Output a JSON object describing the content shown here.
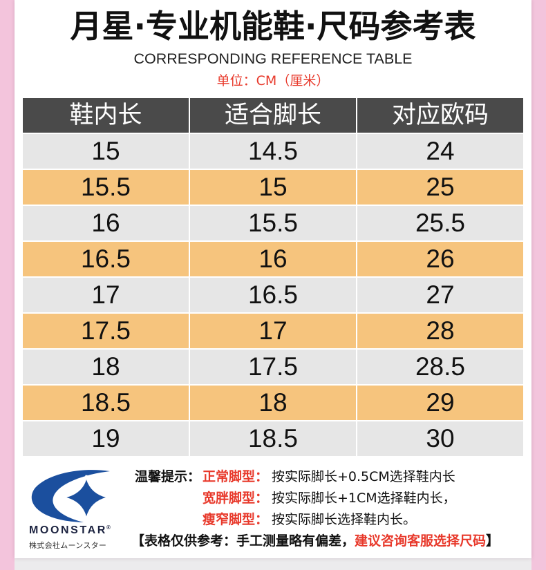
{
  "title": "月星·专业机能鞋·尺码参考表",
  "subtitle": "CORRESPONDING REFERENCE TABLE",
  "unit": "单位：CM（厘米）",
  "table": {
    "headers": [
      "鞋内长",
      "适合脚长",
      "对应欧码"
    ],
    "rows": [
      [
        "15",
        "14.5",
        "24"
      ],
      [
        "15.5",
        "15",
        "25"
      ],
      [
        "16",
        "15.5",
        "25.5"
      ],
      [
        "16.5",
        "16",
        "26"
      ],
      [
        "17",
        "16.5",
        "27"
      ],
      [
        "17.5",
        "17",
        "28"
      ],
      [
        "18",
        "17.5",
        "28.5"
      ],
      [
        "18.5",
        "18",
        "29"
      ],
      [
        "19",
        "18.5",
        "30"
      ]
    ]
  },
  "brand": {
    "logo_icon": "moonstar-logo-icon",
    "name": "MOONSTAR",
    "registered": "®",
    "company": "株式会社ムーンスター"
  },
  "tips": {
    "intro": "温馨提示：",
    "items": [
      {
        "label": "正常脚型：",
        "text": "按实际脚长+0.5CM选择鞋内长"
      },
      {
        "label": "宽胖脚型：",
        "text": "按实际脚长+1CM选择鞋内长，"
      },
      {
        "label": "瘦窄脚型：",
        "text": "按实际脚长选择鞋内长。"
      }
    ]
  },
  "disclaimer": {
    "prefix": "【表格仅供参考：手工测量略有偏差，",
    "highlight": "建议咨询客服选择尺码",
    "suffix": "】"
  },
  "colors": {
    "pink_frame": "#f3c4dc",
    "header_bg": "#4a4a4a",
    "row_gray": "#e6e6e6",
    "row_orange": "#f6c47d",
    "accent_red": "#e8392b",
    "logo_blue": "#1b4f9e",
    "text": "#111111"
  }
}
